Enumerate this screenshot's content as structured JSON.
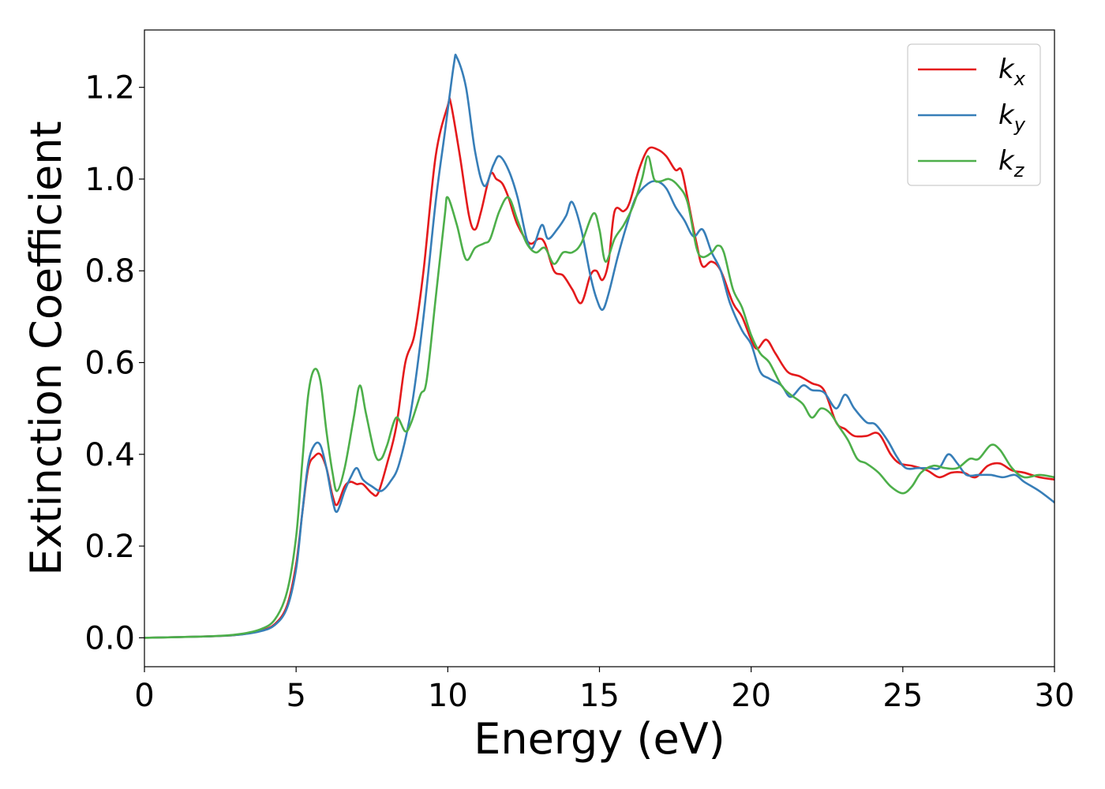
{
  "chart_data": {
    "type": "line",
    "title": "",
    "xlabel": "Energy (eV)",
    "ylabel": "Extinction Coefficient",
    "xlim": [
      0,
      30
    ],
    "ylim": [
      -0.063,
      1.325
    ],
    "xticks": [
      0,
      5,
      10,
      15,
      20,
      25,
      30
    ],
    "xtick_labels": [
      "0",
      "5",
      "10",
      "15",
      "20",
      "25",
      "30"
    ],
    "yticks": [
      0.0,
      0.2,
      0.4,
      0.6,
      0.8,
      1.0,
      1.2
    ],
    "ytick_labels": [
      "0.0",
      "0.2",
      "0.4",
      "0.6",
      "0.8",
      "1.0",
      "1.2"
    ],
    "grid": false,
    "legend_position": "top-right",
    "series": [
      {
        "name": "k",
        "subscript": "x",
        "color": "#e41a1c",
        "points": [
          [
            0,
            0
          ],
          [
            2,
            0.003
          ],
          [
            3,
            0.006
          ],
          [
            3.8,
            0.015
          ],
          [
            4.3,
            0.03
          ],
          [
            4.7,
            0.07
          ],
          [
            5.0,
            0.16
          ],
          [
            5.2,
            0.27
          ],
          [
            5.4,
            0.37
          ],
          [
            5.6,
            0.395
          ],
          [
            5.8,
            0.4
          ],
          [
            6.0,
            0.37
          ],
          [
            6.2,
            0.31
          ],
          [
            6.35,
            0.29
          ],
          [
            6.6,
            0.33
          ],
          [
            6.8,
            0.34
          ],
          [
            7.0,
            0.335
          ],
          [
            7.2,
            0.335
          ],
          [
            7.5,
            0.315
          ],
          [
            7.7,
            0.315
          ],
          [
            8.0,
            0.38
          ],
          [
            8.3,
            0.46
          ],
          [
            8.6,
            0.6
          ],
          [
            8.9,
            0.66
          ],
          [
            9.2,
            0.8
          ],
          [
            9.6,
            1.05
          ],
          [
            10.0,
            1.16
          ],
          [
            10.1,
            1.165
          ],
          [
            10.4,
            1.05
          ],
          [
            10.7,
            0.92
          ],
          [
            10.9,
            0.89
          ],
          [
            11.1,
            0.93
          ],
          [
            11.4,
            1.01
          ],
          [
            11.6,
            1.0
          ],
          [
            11.8,
            0.99
          ],
          [
            12.0,
            0.96
          ],
          [
            12.3,
            0.9
          ],
          [
            12.7,
            0.86
          ],
          [
            13.0,
            0.87
          ],
          [
            13.2,
            0.86
          ],
          [
            13.5,
            0.8
          ],
          [
            13.8,
            0.79
          ],
          [
            14.1,
            0.76
          ],
          [
            14.4,
            0.73
          ],
          [
            14.7,
            0.79
          ],
          [
            14.9,
            0.8
          ],
          [
            15.1,
            0.78
          ],
          [
            15.3,
            0.82
          ],
          [
            15.5,
            0.93
          ],
          [
            15.8,
            0.93
          ],
          [
            16.0,
            0.95
          ],
          [
            16.3,
            1.02
          ],
          [
            16.6,
            1.065
          ],
          [
            16.9,
            1.065
          ],
          [
            17.2,
            1.05
          ],
          [
            17.5,
            1.02
          ],
          [
            17.7,
            1.02
          ],
          [
            17.9,
            0.96
          ],
          [
            18.2,
            0.86
          ],
          [
            18.4,
            0.81
          ],
          [
            18.7,
            0.82
          ],
          [
            19.0,
            0.8
          ],
          [
            19.4,
            0.73
          ],
          [
            19.7,
            0.7
          ],
          [
            20.0,
            0.65
          ],
          [
            20.2,
            0.63
          ],
          [
            20.5,
            0.65
          ],
          [
            20.8,
            0.62
          ],
          [
            21.2,
            0.58
          ],
          [
            21.6,
            0.57
          ],
          [
            22.0,
            0.555
          ],
          [
            22.4,
            0.54
          ],
          [
            22.8,
            0.47
          ],
          [
            23.1,
            0.455
          ],
          [
            23.4,
            0.44
          ],
          [
            23.8,
            0.44
          ],
          [
            24.2,
            0.445
          ],
          [
            24.6,
            0.4
          ],
          [
            24.9,
            0.38
          ],
          [
            25.3,
            0.375
          ],
          [
            25.8,
            0.365
          ],
          [
            26.2,
            0.35
          ],
          [
            26.6,
            0.36
          ],
          [
            27.0,
            0.36
          ],
          [
            27.4,
            0.35
          ],
          [
            27.8,
            0.375
          ],
          [
            28.2,
            0.38
          ],
          [
            28.6,
            0.365
          ],
          [
            29.0,
            0.36
          ],
          [
            29.5,
            0.35
          ],
          [
            30,
            0.345
          ]
        ]
      },
      {
        "name": "k",
        "subscript": "y",
        "color": "#377eb8",
        "points": [
          [
            0,
            0
          ],
          [
            2,
            0.003
          ],
          [
            3,
            0.006
          ],
          [
            3.8,
            0.014
          ],
          [
            4.3,
            0.028
          ],
          [
            4.7,
            0.065
          ],
          [
            5.0,
            0.15
          ],
          [
            5.2,
            0.27
          ],
          [
            5.4,
            0.38
          ],
          [
            5.6,
            0.42
          ],
          [
            5.8,
            0.42
          ],
          [
            6.0,
            0.37
          ],
          [
            6.2,
            0.3
          ],
          [
            6.35,
            0.275
          ],
          [
            6.6,
            0.32
          ],
          [
            6.8,
            0.35
          ],
          [
            7.0,
            0.37
          ],
          [
            7.2,
            0.345
          ],
          [
            7.5,
            0.33
          ],
          [
            7.8,
            0.32
          ],
          [
            8.1,
            0.34
          ],
          [
            8.4,
            0.38
          ],
          [
            8.8,
            0.5
          ],
          [
            9.2,
            0.7
          ],
          [
            9.6,
            0.95
          ],
          [
            9.9,
            1.1
          ],
          [
            10.2,
            1.25
          ],
          [
            10.3,
            1.265
          ],
          [
            10.6,
            1.2
          ],
          [
            10.9,
            1.06
          ],
          [
            11.2,
            0.985
          ],
          [
            11.5,
            1.03
          ],
          [
            11.7,
            1.05
          ],
          [
            12.0,
            1.02
          ],
          [
            12.3,
            0.96
          ],
          [
            12.6,
            0.87
          ],
          [
            12.8,
            0.85
          ],
          [
            13.1,
            0.9
          ],
          [
            13.3,
            0.87
          ],
          [
            13.6,
            0.89
          ],
          [
            13.9,
            0.92
          ],
          [
            14.1,
            0.95
          ],
          [
            14.4,
            0.89
          ],
          [
            14.7,
            0.79
          ],
          [
            14.9,
            0.74
          ],
          [
            15.1,
            0.715
          ],
          [
            15.3,
            0.75
          ],
          [
            15.6,
            0.83
          ],
          [
            15.9,
            0.9
          ],
          [
            16.2,
            0.96
          ],
          [
            16.6,
            0.99
          ],
          [
            16.9,
            0.995
          ],
          [
            17.2,
            0.98
          ],
          [
            17.5,
            0.94
          ],
          [
            17.8,
            0.91
          ],
          [
            18.1,
            0.875
          ],
          [
            18.4,
            0.89
          ],
          [
            18.7,
            0.84
          ],
          [
            19.0,
            0.8
          ],
          [
            19.3,
            0.73
          ],
          [
            19.7,
            0.67
          ],
          [
            20.0,
            0.64
          ],
          [
            20.3,
            0.58
          ],
          [
            20.6,
            0.565
          ],
          [
            21.0,
            0.55
          ],
          [
            21.3,
            0.525
          ],
          [
            21.7,
            0.55
          ],
          [
            22.0,
            0.54
          ],
          [
            22.4,
            0.535
          ],
          [
            22.8,
            0.5
          ],
          [
            23.1,
            0.53
          ],
          [
            23.4,
            0.5
          ],
          [
            23.8,
            0.47
          ],
          [
            24.1,
            0.465
          ],
          [
            24.5,
            0.43
          ],
          [
            24.8,
            0.395
          ],
          [
            25.1,
            0.37
          ],
          [
            25.5,
            0.37
          ],
          [
            25.9,
            0.37
          ],
          [
            26.2,
            0.37
          ],
          [
            26.5,
            0.4
          ],
          [
            26.8,
            0.38
          ],
          [
            27.1,
            0.355
          ],
          [
            27.5,
            0.355
          ],
          [
            27.9,
            0.355
          ],
          [
            28.3,
            0.35
          ],
          [
            28.7,
            0.355
          ],
          [
            29.0,
            0.34
          ],
          [
            29.5,
            0.32
          ],
          [
            30,
            0.295
          ]
        ]
      },
      {
        "name": "k",
        "subscript": "z",
        "color": "#4daf4a",
        "points": [
          [
            0,
            0
          ],
          [
            2,
            0.003
          ],
          [
            3,
            0.007
          ],
          [
            3.8,
            0.018
          ],
          [
            4.3,
            0.04
          ],
          [
            4.7,
            0.1
          ],
          [
            5.0,
            0.22
          ],
          [
            5.2,
            0.38
          ],
          [
            5.4,
            0.53
          ],
          [
            5.6,
            0.585
          ],
          [
            5.8,
            0.56
          ],
          [
            6.0,
            0.45
          ],
          [
            6.2,
            0.36
          ],
          [
            6.35,
            0.32
          ],
          [
            6.6,
            0.37
          ],
          [
            6.9,
            0.48
          ],
          [
            7.1,
            0.55
          ],
          [
            7.3,
            0.49
          ],
          [
            7.6,
            0.4
          ],
          [
            7.8,
            0.39
          ],
          [
            8.0,
            0.42
          ],
          [
            8.3,
            0.48
          ],
          [
            8.6,
            0.45
          ],
          [
            8.8,
            0.47
          ],
          [
            9.1,
            0.53
          ],
          [
            9.3,
            0.56
          ],
          [
            9.6,
            0.74
          ],
          [
            9.9,
            0.92
          ],
          [
            10.0,
            0.96
          ],
          [
            10.3,
            0.9
          ],
          [
            10.6,
            0.825
          ],
          [
            10.9,
            0.85
          ],
          [
            11.2,
            0.86
          ],
          [
            11.4,
            0.87
          ],
          [
            11.7,
            0.93
          ],
          [
            12.0,
            0.96
          ],
          [
            12.3,
            0.91
          ],
          [
            12.6,
            0.86
          ],
          [
            12.9,
            0.84
          ],
          [
            13.2,
            0.85
          ],
          [
            13.5,
            0.815
          ],
          [
            13.8,
            0.84
          ],
          [
            14.1,
            0.84
          ],
          [
            14.4,
            0.86
          ],
          [
            14.8,
            0.925
          ],
          [
            15.0,
            0.89
          ],
          [
            15.2,
            0.82
          ],
          [
            15.5,
            0.87
          ],
          [
            15.8,
            0.9
          ],
          [
            16.1,
            0.94
          ],
          [
            16.4,
            1.0
          ],
          [
            16.6,
            1.05
          ],
          [
            16.8,
            1.0
          ],
          [
            17.0,
            0.995
          ],
          [
            17.3,
            1.0
          ],
          [
            17.6,
            0.985
          ],
          [
            17.9,
            0.95
          ],
          [
            18.2,
            0.85
          ],
          [
            18.4,
            0.83
          ],
          [
            18.7,
            0.84
          ],
          [
            18.9,
            0.855
          ],
          [
            19.1,
            0.84
          ],
          [
            19.4,
            0.76
          ],
          [
            19.7,
            0.72
          ],
          [
            20.0,
            0.66
          ],
          [
            20.3,
            0.62
          ],
          [
            20.6,
            0.6
          ],
          [
            21.0,
            0.55
          ],
          [
            21.3,
            0.53
          ],
          [
            21.7,
            0.51
          ],
          [
            22.0,
            0.48
          ],
          [
            22.3,
            0.5
          ],
          [
            22.6,
            0.49
          ],
          [
            22.9,
            0.46
          ],
          [
            23.2,
            0.43
          ],
          [
            23.5,
            0.39
          ],
          [
            23.8,
            0.38
          ],
          [
            24.2,
            0.36
          ],
          [
            24.6,
            0.33
          ],
          [
            25.0,
            0.315
          ],
          [
            25.3,
            0.33
          ],
          [
            25.6,
            0.36
          ],
          [
            26.0,
            0.375
          ],
          [
            26.4,
            0.37
          ],
          [
            26.8,
            0.37
          ],
          [
            27.2,
            0.39
          ],
          [
            27.5,
            0.39
          ],
          [
            27.9,
            0.42
          ],
          [
            28.2,
            0.41
          ],
          [
            28.6,
            0.37
          ],
          [
            29.0,
            0.35
          ],
          [
            29.5,
            0.355
          ],
          [
            30,
            0.35
          ]
        ]
      }
    ]
  }
}
